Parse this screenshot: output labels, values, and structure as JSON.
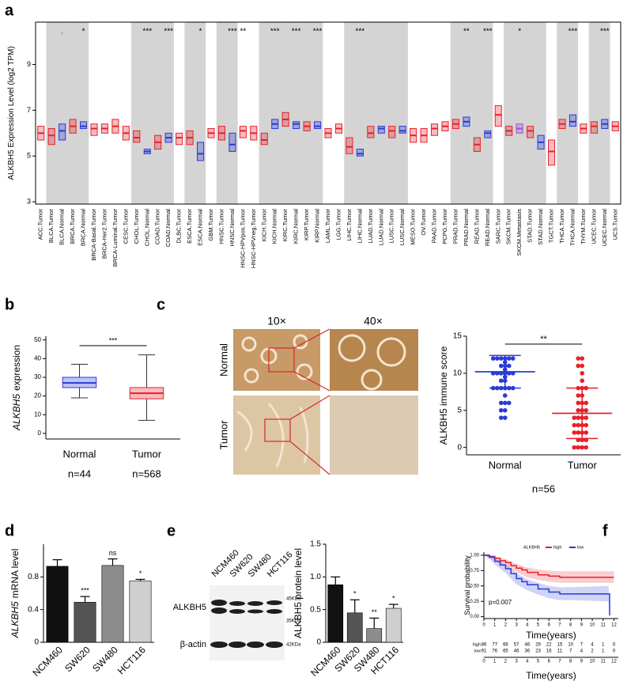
{
  "chart_data": [
    {
      "type": "box",
      "panel_label": "a",
      "y_label": "ALKBH5 Expression Level (log2 TPM)",
      "categories": [
        "ACC.Tumor",
        "BLCA.Tumor",
        "BLCA.Normal",
        "BRCA.Tumor",
        "BRCA.Normal",
        "BRCA-Basal.Tumor",
        "BRCA-Her2.Tumor",
        "BRCA-Luminal.Tumor",
        "CESC.Tumor",
        "CHOL.Tumor",
        "CHOL.Normal",
        "COAD.Tumor",
        "COAD.Normal",
        "DLBC.Tumor",
        "ESCA.Tumor",
        "ESCA.Normal",
        "GBM.Tumor",
        "HNSC.Tumor",
        "HNSC.Normal",
        "HNSC-HPVpos.Tumor",
        "HNSC-HPVneg.Tumor",
        "KICH.Tumor",
        "KICH.Normal",
        "KIRC.Tumor",
        "KIRC.Normal",
        "KIRP.Tumor",
        "KIRP.Normal",
        "LAML.Tumor",
        "LGG.Tumor",
        "LIHC.Tumor",
        "LIHC.Normal",
        "LUAD.Tumor",
        "LUAD.Normal",
        "LUSC.Tumor",
        "LUSC.Normal",
        "MESO.Tumor",
        "OV.Tumor",
        "PAAD.Tumor",
        "PCPG.Tumor",
        "PRAD.Tumor",
        "PRAD.Normal",
        "READ.Tumor",
        "READ.Normal",
        "SARC.Tumor",
        "SKCM.Tumor",
        "SKCM.Metastasis",
        "STAD.Tumor",
        "STAD.Normal",
        "TGCT.Tumor",
        "THCA.Tumor",
        "THCA.Normal",
        "THYM.Tumor",
        "UCEC.Tumor",
        "UCEC.Normal",
        "UCS.Tumor"
      ],
      "median": [
        6.0,
        5.9,
        6.1,
        6.3,
        6.3,
        6.2,
        6.2,
        6.3,
        6.0,
        5.8,
        5.2,
        5.6,
        5.8,
        5.8,
        5.8,
        5.1,
        6.0,
        6.0,
        5.5,
        6.1,
        6.0,
        5.7,
        6.4,
        6.6,
        6.4,
        6.3,
        6.3,
        6.0,
        6.2,
        5.4,
        5.1,
        6.0,
        6.2,
        6.1,
        6.1,
        5.9,
        5.9,
        6.2,
        6.3,
        6.4,
        6.5,
        5.5,
        6.0,
        6.8,
        6.1,
        6.2,
        6.1,
        5.6,
        5.2,
        6.4,
        6.5,
        6.2,
        6.3,
        6.4,
        6.3
      ],
      "q1": [
        5.7,
        5.5,
        5.7,
        6.0,
        6.2,
        5.9,
        6.0,
        6.0,
        5.7,
        5.6,
        5.1,
        5.3,
        5.6,
        5.5,
        5.5,
        4.8,
        5.8,
        5.7,
        5.2,
        5.8,
        5.7,
        5.5,
        6.2,
        6.3,
        6.2,
        6.1,
        6.2,
        5.8,
        6.0,
        5.1,
        5.0,
        5.8,
        6.0,
        5.8,
        6.0,
        5.6,
        5.6,
        5.9,
        6.1,
        6.2,
        6.3,
        5.2,
        5.8,
        6.3,
        5.9,
        6.0,
        5.8,
        5.3,
        4.6,
        6.2,
        6.3,
        6.0,
        6.0,
        6.2,
        6.1
      ],
      "q3": [
        6.3,
        6.2,
        6.4,
        6.6,
        6.5,
        6.4,
        6.4,
        6.6,
        6.3,
        6.1,
        5.3,
        5.9,
        6.0,
        6.0,
        6.1,
        5.6,
        6.2,
        6.3,
        6.0,
        6.3,
        6.3,
        6.0,
        6.6,
        6.9,
        6.5,
        6.5,
        6.5,
        6.2,
        6.4,
        5.8,
        5.3,
        6.3,
        6.3,
        6.3,
        6.3,
        6.2,
        6.2,
        6.4,
        6.5,
        6.6,
        6.7,
        5.8,
        6.1,
        7.2,
        6.3,
        6.4,
        6.3,
        5.9,
        5.7,
        6.6,
        6.8,
        6.4,
        6.5,
        6.6,
        6.5
      ],
      "significance": [
        null,
        null,
        ".",
        null,
        "*",
        null,
        null,
        null,
        null,
        null,
        "***",
        null,
        "***",
        null,
        null,
        "*",
        null,
        null,
        "***",
        "**",
        null,
        null,
        "***",
        null,
        "***",
        null,
        "***",
        null,
        null,
        null,
        "***",
        null,
        null,
        null,
        null,
        null,
        null,
        null,
        null,
        null,
        "**",
        null,
        "***",
        null,
        null,
        "*",
        null,
        null,
        null,
        null,
        "***",
        null,
        null,
        "***",
        null
      ],
      "colors": {
        "Tumor": "#e8202a",
        "Normal": "#2a3bd6",
        "Metastasis": "#a050d0"
      },
      "highlight": [
        11,
        12,
        41,
        42
      ],
      "highlight_color": "#e8202a",
      "shade_pairs": true,
      "ylim": [
        2.9,
        10.85
      ],
      "yticks": [
        3,
        5,
        7,
        9
      ]
    },
    {
      "type": "box",
      "panel_label": "b",
      "y_label_gene": "ALKBH5",
      "y_label": "expression",
      "categories": [
        "Normal",
        "Tumor"
      ],
      "n_labels": [
        "n=44",
        "n=568"
      ],
      "median": [
        27,
        21.5
      ],
      "q1": [
        24.5,
        18.5
      ],
      "q3": [
        30,
        24.5
      ],
      "whisker_low": [
        19,
        7
      ],
      "whisker_high": [
        37,
        42
      ],
      "colors": {
        "Normal": "#2a3bd6",
        "Tumor": "#e8202a"
      },
      "significance": "***",
      "ylim": [
        -3,
        52
      ],
      "yticks": [
        0,
        10,
        20,
        30,
        40,
        50
      ]
    },
    {
      "type": "dot",
      "panel_label": "c",
      "y_label": "ALKBH5 immune score",
      "image_columns": [
        "10×",
        "40×"
      ],
      "image_rows": [
        "Normal",
        "Tumor"
      ],
      "categories": [
        "Normal",
        "Tumor"
      ],
      "values": [
        [
          12,
          12,
          12,
          12,
          12,
          12,
          11.5,
          11,
          11,
          11,
          10.5,
          10,
          10,
          10,
          10,
          10,
          10,
          9.5,
          9,
          9,
          8,
          8,
          8,
          8,
          8,
          8,
          7,
          6,
          6,
          6,
          5,
          5,
          4,
          4
        ],
        [
          12,
          12,
          11,
          11,
          10,
          9,
          8,
          8,
          8,
          7,
          7,
          6,
          6,
          6,
          5,
          5,
          5,
          4,
          4,
          4,
          4,
          3,
          3,
          3,
          3,
          2,
          2,
          2,
          2,
          1,
          1,
          1,
          0,
          0,
          0,
          0
        ]
      ],
      "mean": [
        10.2,
        4.6
      ],
      "sd": [
        2.2,
        3.4
      ],
      "colors": [
        "#2a3bd6",
        "#e8202a"
      ],
      "significance": "**",
      "n_label": "n=56",
      "ylim": [
        -1,
        15
      ],
      "yticks": [
        0,
        5,
        10,
        15
      ]
    },
    {
      "type": "bar",
      "panel_label": "d",
      "y_label_gene": "ALKBH5",
      "y_label": "mRNA level",
      "categories": [
        "NCM460",
        "SW620",
        "SW480",
        "HCT116"
      ],
      "values": [
        0.93,
        0.49,
        0.94,
        0.75
      ],
      "errors": [
        0.08,
        0.07,
        0.08,
        0.02
      ],
      "colors": [
        "#111111",
        "#555555",
        "#8c8c8c",
        "#cfcfcf"
      ],
      "significance": [
        null,
        "***",
        "ns",
        "*"
      ],
      "ylim": [
        0,
        1.2
      ],
      "yticks": [
        0,
        0.4,
        0.8
      ]
    },
    {
      "type": "bar",
      "panel_label": "e",
      "y_label": "ALKBH5 protein level",
      "blot_lanes": [
        "NCM460",
        "SW620",
        "SW480",
        "HCT116"
      ],
      "blot_rows": [
        "ALKBH5",
        "β-actin"
      ],
      "blot_markers": [
        "45KDa",
        "35KDa",
        "42KDa"
      ],
      "categories": [
        "NCM460",
        "SW620",
        "SW480",
        "HCT116"
      ],
      "values": [
        0.88,
        0.45,
        0.21,
        0.52
      ],
      "errors": [
        0.12,
        0.2,
        0.16,
        0.06
      ],
      "colors": [
        "#111111",
        "#555555",
        "#8c8c8c",
        "#cfcfcf"
      ],
      "significance": [
        null,
        "*",
        "**",
        "*"
      ],
      "ylim": [
        0,
        1.5
      ],
      "yticks": [
        0,
        0.5,
        {
          "value": 1,
          "label": "1.0"
        },
        1.5
      ]
    },
    {
      "type": "survival",
      "panel_label": "f",
      "legend_title": "ALKBH5",
      "y_label": "Survival probability",
      "x_label": "Time(years)",
      "p_label": "p=0.007",
      "series": [
        {
          "name": "high",
          "color": "#e8202a",
          "x": [
            0,
            0.5,
            1,
            1.5,
            2,
            2.5,
            3,
            3.5,
            4,
            5,
            6,
            7,
            8,
            12
          ],
          "values": [
            1,
            0.98,
            0.95,
            0.91,
            0.88,
            0.83,
            0.79,
            0.76,
            0.72,
            0.68,
            0.66,
            0.64,
            0.64,
            0.64
          ],
          "lower": [
            1,
            0.95,
            0.91,
            0.86,
            0.82,
            0.76,
            0.72,
            0.68,
            0.64,
            0.6,
            0.57,
            0.55,
            0.55,
            0.55
          ],
          "upper": [
            1,
            1,
            0.99,
            0.96,
            0.94,
            0.9,
            0.86,
            0.83,
            0.8,
            0.77,
            0.75,
            0.74,
            0.74,
            0.74
          ]
        },
        {
          "name": "low",
          "color": "#2a3bd6",
          "x": [
            0,
            0.5,
            1,
            1.5,
            2,
            2.5,
            3,
            3.5,
            4,
            5,
            6,
            7,
            8,
            11.5,
            11.6
          ],
          "values": [
            1,
            0.97,
            0.9,
            0.84,
            0.78,
            0.7,
            0.62,
            0.57,
            0.52,
            0.45,
            0.4,
            0.37,
            0.37,
            0.37,
            0.02
          ],
          "lower": [
            1,
            0.94,
            0.85,
            0.78,
            0.71,
            0.62,
            0.53,
            0.48,
            0.43,
            0.36,
            0.3,
            0.27,
            0.27,
            0.25,
            0
          ],
          "upper": [
            1,
            1,
            0.95,
            0.9,
            0.85,
            0.78,
            0.71,
            0.66,
            0.61,
            0.55,
            0.5,
            0.48,
            0.48,
            0.5,
            0.2
          ]
        }
      ],
      "xlim": [
        0,
        12.4
      ],
      "xticks": [
        0,
        1,
        2,
        3,
        4,
        5,
        6,
        7,
        8,
        9,
        10,
        11,
        12
      ],
      "ylim": [
        -0.03,
        1.05
      ],
      "yticks": [
        {
          "value": 0,
          "label": "0.00"
        },
        {
          "value": 0.25,
          "label": "0.25"
        },
        {
          "value": 0.5,
          "label": "0.50"
        },
        {
          "value": 0.75,
          "label": "0.75"
        },
        {
          "value": 1,
          "label": "1.00"
        }
      ],
      "risk_table": {
        "rows": [
          {
            "name": "high",
            "values": [
              86,
              77,
              66,
              57,
              46,
              29,
              22,
              15,
              10,
              7,
              4,
              1,
              0
            ]
          },
          {
            "name": "low",
            "values": [
              91,
              76,
              65,
              46,
              36,
              23,
              16,
              11,
              7,
              4,
              2,
              1,
              0
            ]
          }
        ]
      }
    }
  ]
}
